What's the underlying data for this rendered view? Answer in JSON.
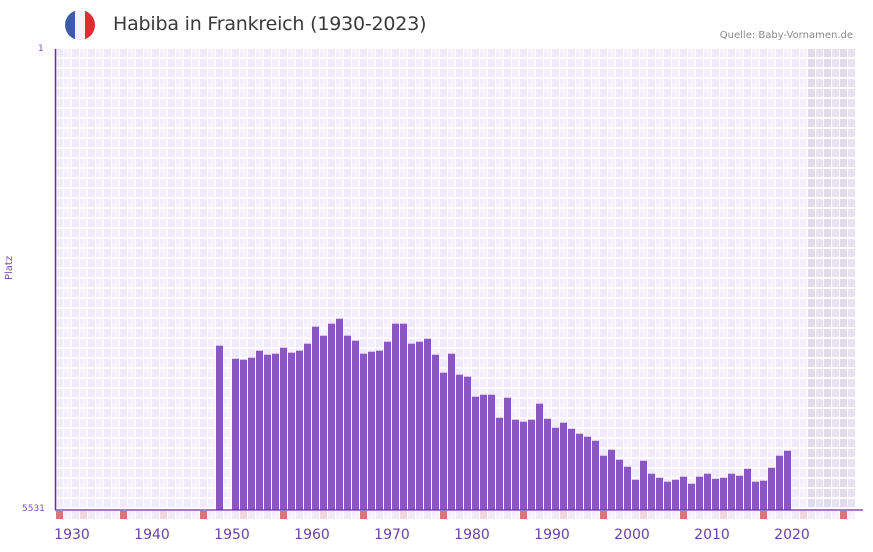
{
  "header": {
    "title": "Habiba in Frankreich (1930-2023)",
    "source": "Quelle: Baby-Vornamen.de",
    "flag_colors": [
      "#3a5ba9",
      "#f3f3f3",
      "#e02b35"
    ]
  },
  "colors": {
    "bar": "#8b54c7",
    "axis": "#6a2f9e",
    "grid_a": "#efeaf8",
    "grid_b": "#f4f1fb",
    "future_a": "#e1dcec",
    "future_b": "#e6e2ef",
    "decade_marker": "#e0707a",
    "half_decade_marker": "#f4d4de"
  },
  "chart_data": {
    "type": "bar",
    "title": "Habiba in Frankreich (1930-2023)",
    "xlabel": "",
    "ylabel": "Platz",
    "y_inverted": true,
    "ylim": [
      1,
      5531
    ],
    "xlim": [
      1930,
      2029
    ],
    "grid": true,
    "x_tick_labels": [
      "1930",
      "1940",
      "1950",
      "1960",
      "1970",
      "1980",
      "1990",
      "2000",
      "2010",
      "2020"
    ],
    "y_tick_labels": [
      "1",
      "5531"
    ],
    "shaded_future_from": 2024,
    "x": [
      1950,
      1952,
      1953,
      1954,
      1955,
      1956,
      1957,
      1958,
      1959,
      1960,
      1961,
      1962,
      1963,
      1964,
      1965,
      1966,
      1967,
      1968,
      1969,
      1970,
      1971,
      1972,
      1973,
      1974,
      1975,
      1976,
      1977,
      1978,
      1979,
      1980,
      1981,
      1982,
      1983,
      1984,
      1985,
      1986,
      1987,
      1988,
      1989,
      1990,
      1991,
      1992,
      1993,
      1994,
      1995,
      1996,
      1997,
      1998,
      1999,
      2000,
      2001,
      2002,
      2003,
      2004,
      2005,
      2006,
      2007,
      2008,
      2009,
      2010,
      2011,
      2012,
      2013,
      2014,
      2015,
      2016,
      2017,
      2018,
      2019,
      2020,
      2021
    ],
    "values": [
      3560,
      3716,
      3728,
      3704,
      3620,
      3668,
      3656,
      3584,
      3644,
      3620,
      3536,
      3332,
      3440,
      3296,
      3236,
      3440,
      3500,
      3656,
      3632,
      3620,
      3512,
      3296,
      3296,
      3536,
      3512,
      3476,
      3668,
      3884,
      3656,
      3908,
      3932,
      4172,
      4148,
      4148,
      4424,
      4184,
      4448,
      4472,
      4448,
      4256,
      4436,
      4544,
      4484,
      4556,
      4616,
      4652,
      4700,
      4880,
      4808,
      4928,
      5012,
      5168,
      4940,
      5096,
      5144,
      5192,
      5168,
      5132,
      5216,
      5132,
      5096,
      5156,
      5144,
      5096,
      5120,
      5036,
      5192,
      5180,
      5024,
      4880,
      4820
    ]
  }
}
